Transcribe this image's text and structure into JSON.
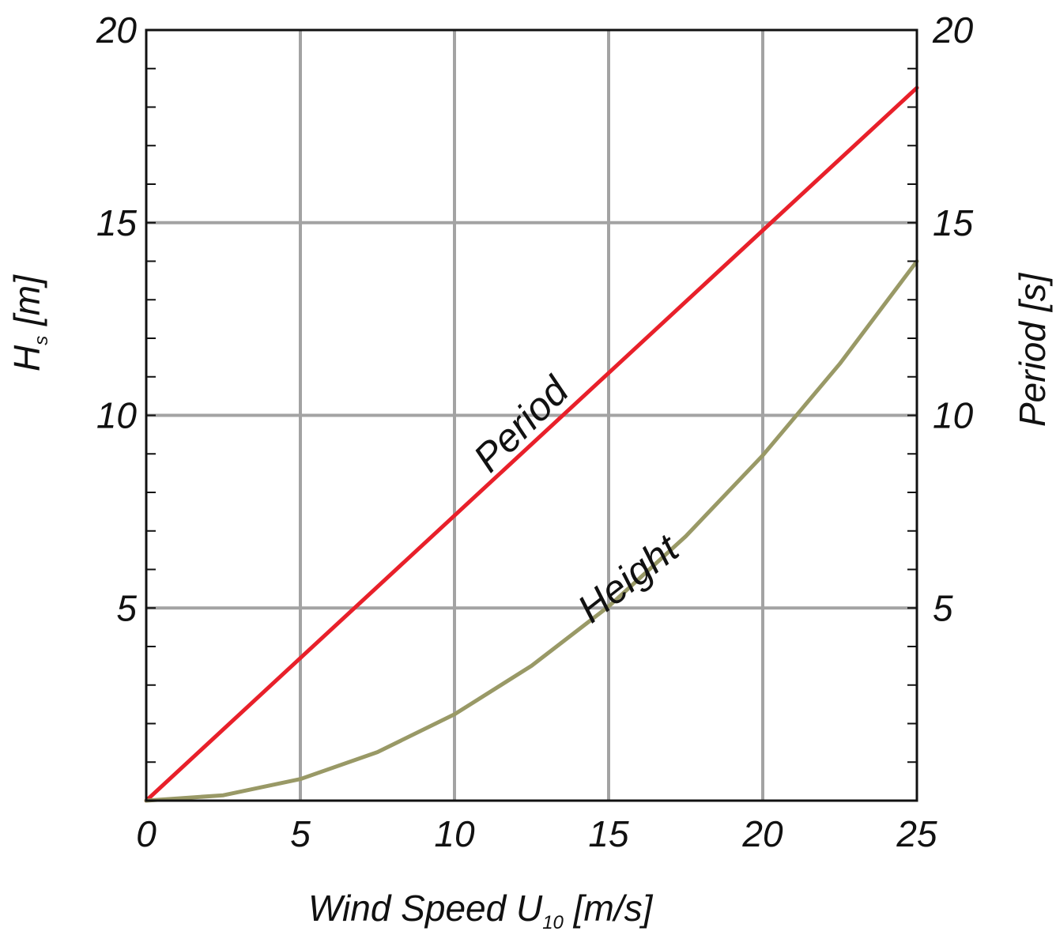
{
  "chart_data": {
    "type": "line",
    "title": "",
    "xlabel": {
      "main": "Wind Speed   U",
      "sub": "10",
      "unit": " [m/s]"
    },
    "ylabel_left": {
      "main": "H",
      "sub": "s",
      "unit": " [m]"
    },
    "ylabel_right": "Period [s]",
    "xlim": [
      0,
      25
    ],
    "ylim_left": [
      0,
      20
    ],
    "ylim_right": [
      0,
      20
    ],
    "x_ticks": [
      "0",
      "5",
      "10",
      "15",
      "20",
      "25"
    ],
    "y_left_ticks": [
      "5",
      "10",
      "15",
      "20"
    ],
    "y_right_ticks": [
      "5",
      "10",
      "15",
      "20"
    ],
    "grid": true,
    "series": [
      {
        "name": "Period",
        "axis": "right",
        "color": "#e8202a",
        "x": [
          0,
          5,
          10,
          15,
          20,
          25
        ],
        "y": [
          0,
          3.7,
          7.4,
          11.1,
          14.8,
          18.5
        ]
      },
      {
        "name": "Height",
        "axis": "left",
        "color": "#999966",
        "x": [
          0,
          2.5,
          5,
          7.5,
          10,
          12.5,
          15,
          17.5,
          20,
          22.5,
          25
        ],
        "y": [
          0,
          0.14,
          0.56,
          1.26,
          2.24,
          3.5,
          5.04,
          6.86,
          8.96,
          11.34,
          14.0
        ]
      }
    ]
  }
}
